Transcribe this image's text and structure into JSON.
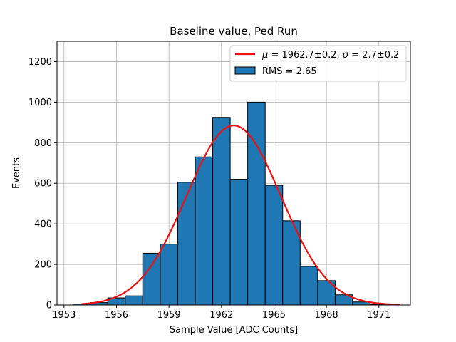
{
  "chart_data": {
    "type": "bar",
    "title": "Baseline value, Ped Run",
    "xlabel": "Sample Value [ADC Counts]",
    "ylabel": "Events",
    "xlim": [
      1952.6,
      1972.8
    ],
    "ylim": [
      0,
      1300
    ],
    "grid": true,
    "legend_position": "top-right",
    "x_ticks": [
      1953,
      1956,
      1959,
      1962,
      1965,
      1968,
      1971
    ],
    "y_ticks": [
      0,
      200,
      400,
      600,
      800,
      1000,
      1200
    ],
    "bin_edges": [
      1953.5,
      1954.5,
      1955.5,
      1956.5,
      1957.5,
      1958.5,
      1959.5,
      1960.5,
      1961.5,
      1962.5,
      1963.5,
      1964.5,
      1965.5,
      1966.5,
      1967.5,
      1968.5,
      1969.5,
      1970.5,
      1971.5
    ],
    "series": [
      {
        "name": "RMS = 2.65",
        "kind": "histogram",
        "color": "#1f77b4",
        "edgecolor": "#000000",
        "values": [
          5,
          12,
          35,
          45,
          255,
          300,
          605,
          730,
          925,
          620,
          1000,
          590,
          415,
          190,
          120,
          50,
          15,
          3
        ]
      },
      {
        "name": "$\\mu = 1962.7\\pm0.2$, $\\sigma = 2.7\\pm0.2$",
        "kind": "gaussian-fit",
        "color": "#ee1111",
        "mu": 1962.7,
        "sigma": 2.7,
        "amplitude": 885,
        "x_range": [
          1954,
          1972.2
        ]
      }
    ]
  },
  "legend": {
    "fit_label_mu_symbol": "μ",
    "fit_label_mu_value": " = 1962.7±0.2, ",
    "fit_label_sigma_symbol": "σ",
    "fit_label_sigma_value": " = 2.7±0.2",
    "hist_label": "RMS = 2.65"
  }
}
